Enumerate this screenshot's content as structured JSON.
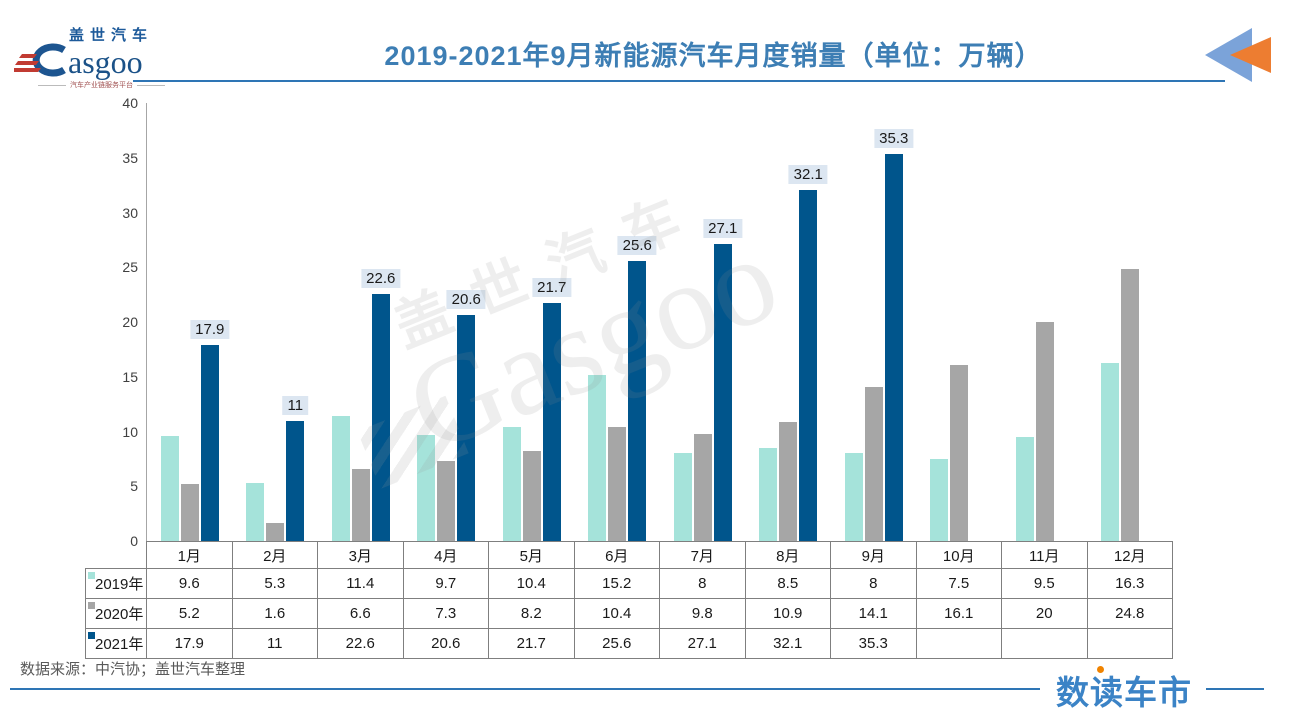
{
  "header": {
    "logo": {
      "cn": "盖世汽车",
      "en": "asgoo",
      "tagline": "汽车产业链服务平台"
    },
    "title": "2019-2021年9月新能源汽车月度销量（单位：万辆）",
    "accent_color": "#3d7eb4"
  },
  "chart_data": {
    "type": "bar",
    "title": "2019-2021年9月新能源汽车月度销量（单位：万辆）",
    "unit": "万辆",
    "categories": [
      "1月",
      "2月",
      "3月",
      "4月",
      "5月",
      "6月",
      "7月",
      "8月",
      "9月",
      "10月",
      "11月",
      "12月"
    ],
    "series": [
      {
        "name": "2019年",
        "color": "#a5e3da",
        "values": [
          9.6,
          5.3,
          11.4,
          9.7,
          10.4,
          15.2,
          8,
          8.5,
          8,
          7.5,
          9.5,
          16.3
        ]
      },
      {
        "name": "2020年",
        "color": "#a6a6a6",
        "values": [
          5.2,
          1.6,
          6.6,
          7.3,
          8.2,
          10.4,
          9.8,
          10.9,
          14.1,
          16.1,
          20,
          24.8
        ]
      },
      {
        "name": "2021年",
        "color": "#00558c",
        "data_labels": true,
        "label_bg": "#dce6f1",
        "values": [
          17.9,
          11,
          22.6,
          20.6,
          21.7,
          25.6,
          27.1,
          32.1,
          35.3,
          null,
          null,
          null
        ]
      }
    ],
    "ylim": [
      0,
      40
    ],
    "ytick_step": 5,
    "grid": false,
    "legend_position": "table-rows-left",
    "watermark": {
      "cn": "盖世汽车",
      "en": "Gasgoo"
    }
  },
  "footer": {
    "source": "数据来源：中汽协；盖世汽车整理",
    "brand": "数读车市"
  }
}
